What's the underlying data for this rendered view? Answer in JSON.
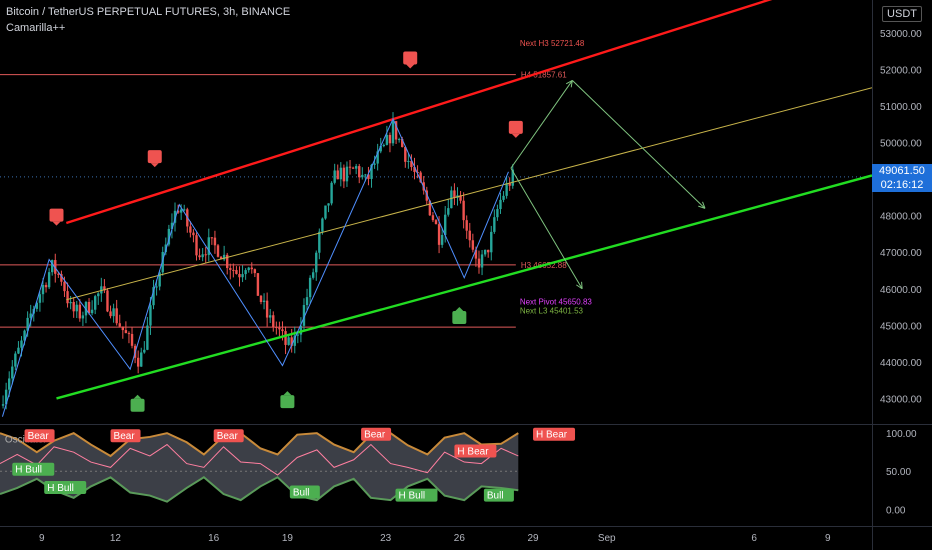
{
  "header": {
    "title": "Bitcoin / TetherUS PERPETUAL FUTURES, 3h, BINANCE",
    "indicator": "Camarilla++",
    "currency": "USDT"
  },
  "last_price": {
    "price": "49061.50",
    "countdown": "02:16:12"
  },
  "colors": {
    "background": "#000000",
    "upper_channel": "#ff1a1a",
    "lower_channel": "#22dd22",
    "mid_channel": "#c8b44a",
    "zigzag": "#4f8fff",
    "bull_candle": "#26a69a",
    "bear_candle": "#ef5350",
    "level_line": "#e05a5a",
    "bull_label": "#4caf50",
    "bear_label": "#ef5350"
  },
  "chart_data": [
    {
      "type": "candlestick",
      "title": "Bitcoin / TetherUS PERPETUAL FUTURES, 3h, BINANCE",
      "y_axis": {
        "ticks": [
          "53000.00",
          "52000.00",
          "51000.00",
          "50000.00",
          "49000.00",
          "48000.00",
          "47000.00",
          "46000.00",
          "45000.00",
          "44000.00",
          "43000.00"
        ],
        "range": [
          42300,
          53900
        ]
      },
      "x_axis": {
        "ticks": [
          {
            "label": "9",
            "day": 9
          },
          {
            "label": "12",
            "day": 12
          },
          {
            "label": "16",
            "day": 16
          },
          {
            "label": "19",
            "day": 19
          },
          {
            "label": "23",
            "day": 23
          },
          {
            "label": "26",
            "day": 26
          },
          {
            "label": "29",
            "day": 29
          },
          {
            "label": "Sep",
            "day": 32
          },
          {
            "label": "6",
            "day": 38
          },
          {
            "label": "9",
            "day": 41
          }
        ],
        "range": [
          7.3,
          42.8
        ]
      },
      "close_path": [
        [
          7.3,
          42800
        ],
        [
          7.6,
          43500
        ],
        [
          8.0,
          44200
        ],
        [
          8.3,
          44700
        ],
        [
          8.6,
          45400
        ],
        [
          9.0,
          46000
        ],
        [
          9.4,
          46600
        ],
        [
          9.8,
          46300
        ],
        [
          10.2,
          45400
        ],
        [
          10.6,
          45300
        ],
        [
          11.0,
          45600
        ],
        [
          11.4,
          45900
        ],
        [
          11.8,
          45500
        ],
        [
          12.2,
          45000
        ],
        [
          12.6,
          44500
        ],
        [
          13.0,
          44000
        ],
        [
          13.3,
          44900
        ],
        [
          13.6,
          46000
        ],
        [
          14.0,
          47000
        ],
        [
          14.3,
          47900
        ],
        [
          14.6,
          48300
        ],
        [
          15.0,
          47600
        ],
        [
          15.4,
          47000
        ],
        [
          15.8,
          47200
        ],
        [
          16.2,
          47100
        ],
        [
          16.6,
          46700
        ],
        [
          17.0,
          46400
        ],
        [
          17.4,
          46800
        ],
        [
          17.8,
          45900
        ],
        [
          18.2,
          45200
        ],
        [
          18.6,
          44900
        ],
        [
          19.0,
          44400
        ],
        [
          19.3,
          44600
        ],
        [
          19.6,
          45300
        ],
        [
          20.0,
          46300
        ],
        [
          20.3,
          47400
        ],
        [
          20.6,
          48200
        ],
        [
          21.0,
          49200
        ],
        [
          21.4,
          49100
        ],
        [
          21.8,
          49300
        ],
        [
          22.2,
          48900
        ],
        [
          22.6,
          49500
        ],
        [
          23.0,
          49900
        ],
        [
          23.3,
          50400
        ],
        [
          23.6,
          50000
        ],
        [
          24.0,
          49400
        ],
        [
          24.4,
          48800
        ],
        [
          24.8,
          48200
        ],
        [
          25.2,
          47400
        ],
        [
          25.6,
          48600
        ],
        [
          26.0,
          48700
        ],
        [
          26.3,
          47500
        ],
        [
          26.6,
          46700
        ],
        [
          27.0,
          46800
        ],
        [
          27.3,
          47400
        ],
        [
          27.6,
          48300
        ],
        [
          28.0,
          48900
        ],
        [
          28.2,
          49061.5
        ]
      ],
      "channels": [
        {
          "name": "upper",
          "from": [
            10.0,
            47800
          ],
          "to": [
            42.8,
            54800
          ]
        },
        {
          "name": "middle",
          "from": [
            10.0,
            45700
          ],
          "to": [
            42.8,
            51500
          ]
        },
        {
          "name": "lower",
          "from": [
            9.6,
            43000
          ],
          "to": [
            42.8,
            49100
          ]
        }
      ],
      "zigzag": [
        [
          7.4,
          42500
        ],
        [
          9.3,
          46800
        ],
        [
          12.6,
          43800
        ],
        [
          14.6,
          48300
        ],
        [
          18.8,
          43900
        ],
        [
          23.3,
          50650
        ],
        [
          26.2,
          46300
        ],
        [
          28.0,
          49200
        ]
      ],
      "projection_arrows": [
        {
          "from": [
            28.1,
            49300
          ],
          "to": [
            30.6,
            51700
          ]
        },
        {
          "from": [
            30.6,
            51700
          ],
          "to": [
            36.0,
            48200
          ]
        },
        {
          "from": [
            28.1,
            49300
          ],
          "to": [
            31.0,
            46000
          ]
        }
      ],
      "horizontal_levels": [
        {
          "y": 51857.61,
          "x_start": 7.3,
          "x_end": 28.3,
          "label": "H4 51857.61",
          "color": "#e05a5a"
        },
        {
          "y": 46652.88,
          "x_start": 7.3,
          "x_end": 28.3,
          "label": "H3 46652.88",
          "color": "#e05a5a"
        },
        {
          "y": 44950,
          "x_start": 7.3,
          "x_end": 28.3,
          "label": "",
          "color": "#e05a5a"
        }
      ],
      "next_levels": [
        {
          "y": 52721.48,
          "label": "Next H3 52721.48",
          "color": "#ef5350"
        },
        {
          "y": 45650.83,
          "label": "Next Pivot 45650.83",
          "color": "#e040fb"
        },
        {
          "y": 45401.53,
          "label": "Next L3 45401.53",
          "color": "#7cb342"
        }
      ],
      "signal_markers": [
        {
          "kind": "bear",
          "x": 9.6,
          "y": 48000
        },
        {
          "kind": "bear",
          "x": 13.6,
          "y": 49600
        },
        {
          "kind": "bear",
          "x": 24.0,
          "y": 52300
        },
        {
          "kind": "bear",
          "x": 28.3,
          "y": 50400
        },
        {
          "kind": "bull",
          "x": 12.9,
          "y": 42800
        },
        {
          "kind": "bull",
          "x": 19.0,
          "y": 42900
        },
        {
          "kind": "bull",
          "x": 26.0,
          "y": 45200
        }
      ]
    },
    {
      "type": "area",
      "title": "Oscillator",
      "y_axis": {
        "ticks": [
          "100.00",
          "50.00",
          "0.00"
        ],
        "range": [
          -22,
          112
        ]
      },
      "upper_band": [
        [
          7.3,
          100
        ],
        [
          8.0,
          92
        ],
        [
          8.8,
          75
        ],
        [
          9.5,
          90
        ],
        [
          10.3,
          100
        ],
        [
          11.0,
          85
        ],
        [
          11.8,
          70
        ],
        [
          12.6,
          92
        ],
        [
          13.4,
          95
        ],
        [
          14.1,
          100
        ],
        [
          14.9,
          88
        ],
        [
          15.6,
          72
        ],
        [
          16.4,
          96
        ],
        [
          17.1,
          100
        ],
        [
          17.9,
          80
        ],
        [
          18.6,
          72
        ],
        [
          19.4,
          98
        ],
        [
          20.2,
          100
        ],
        [
          20.9,
          85
        ],
        [
          21.7,
          75
        ],
        [
          22.4,
          98
        ],
        [
          23.2,
          100
        ],
        [
          23.9,
          84
        ],
        [
          24.7,
          72
        ],
        [
          25.4,
          94
        ],
        [
          26.2,
          100
        ],
        [
          26.9,
          85
        ],
        [
          27.7,
          86
        ],
        [
          28.4,
          100
        ]
      ],
      "lower_band": [
        [
          7.3,
          20
        ],
        [
          8.0,
          28
        ],
        [
          8.8,
          40
        ],
        [
          9.5,
          25
        ],
        [
          10.3,
          15
        ],
        [
          11.0,
          30
        ],
        [
          11.8,
          42
        ],
        [
          12.6,
          22
        ],
        [
          13.4,
          18
        ],
        [
          14.1,
          10
        ],
        [
          14.9,
          28
        ],
        [
          15.6,
          42
        ],
        [
          16.4,
          20
        ],
        [
          17.1,
          12
        ],
        [
          17.9,
          30
        ],
        [
          18.6,
          42
        ],
        [
          19.4,
          18
        ],
        [
          20.2,
          12
        ],
        [
          20.9,
          30
        ],
        [
          21.7,
          40
        ],
        [
          22.4,
          15
        ],
        [
          23.2,
          12
        ],
        [
          23.9,
          30
        ],
        [
          24.7,
          40
        ],
        [
          25.4,
          18
        ],
        [
          26.2,
          12
        ],
        [
          26.9,
          30
        ],
        [
          27.7,
          28
        ],
        [
          28.4,
          25
        ]
      ],
      "oscillator_line": [
        [
          7.3,
          60
        ],
        [
          8.0,
          72
        ],
        [
          8.8,
          58
        ],
        [
          9.5,
          82
        ],
        [
          10.3,
          75
        ],
        [
          11.0,
          62
        ],
        [
          11.8,
          55
        ],
        [
          12.6,
          80
        ],
        [
          13.4,
          70
        ],
        [
          14.1,
          85
        ],
        [
          14.9,
          60
        ],
        [
          15.6,
          55
        ],
        [
          16.4,
          82
        ],
        [
          17.1,
          62
        ],
        [
          17.9,
          60
        ],
        [
          18.6,
          45
        ],
        [
          19.4,
          68
        ],
        [
          20.2,
          78
        ],
        [
          20.9,
          55
        ],
        [
          21.7,
          65
        ],
        [
          22.4,
          85
        ],
        [
          23.2,
          60
        ],
        [
          23.9,
          55
        ],
        [
          24.7,
          48
        ],
        [
          25.4,
          75
        ],
        [
          26.2,
          62
        ],
        [
          26.9,
          60
        ],
        [
          27.7,
          80
        ],
        [
          28.4,
          70
        ]
      ],
      "labels": [
        {
          "text": "Oscillator",
          "x": 7.5,
          "y": 88,
          "kind": "plain"
        },
        {
          "text": "Bear",
          "x": 8.3,
          "y": 92,
          "kind": "bear"
        },
        {
          "text": "Bear",
          "x": 11.8,
          "y": 92,
          "kind": "bear"
        },
        {
          "text": "Bear",
          "x": 16.0,
          "y": 92,
          "kind": "bear"
        },
        {
          "text": "Bear",
          "x": 22.0,
          "y": 94,
          "kind": "bear"
        },
        {
          "text": "H Bear",
          "x": 25.8,
          "y": 72,
          "kind": "bear"
        },
        {
          "text": "H Bear",
          "x": 29.0,
          "y": 94,
          "kind": "bear"
        },
        {
          "text": "H Bull",
          "x": 7.8,
          "y": 48,
          "kind": "bull"
        },
        {
          "text": "H Bull",
          "x": 9.1,
          "y": 24,
          "kind": "bull"
        },
        {
          "text": "Bull",
          "x": 19.1,
          "y": 18,
          "kind": "bull"
        },
        {
          "text": "H Bull",
          "x": 23.4,
          "y": 14,
          "kind": "bull"
        },
        {
          "text": "Bull",
          "x": 27.0,
          "y": 14,
          "kind": "bull"
        }
      ]
    }
  ]
}
